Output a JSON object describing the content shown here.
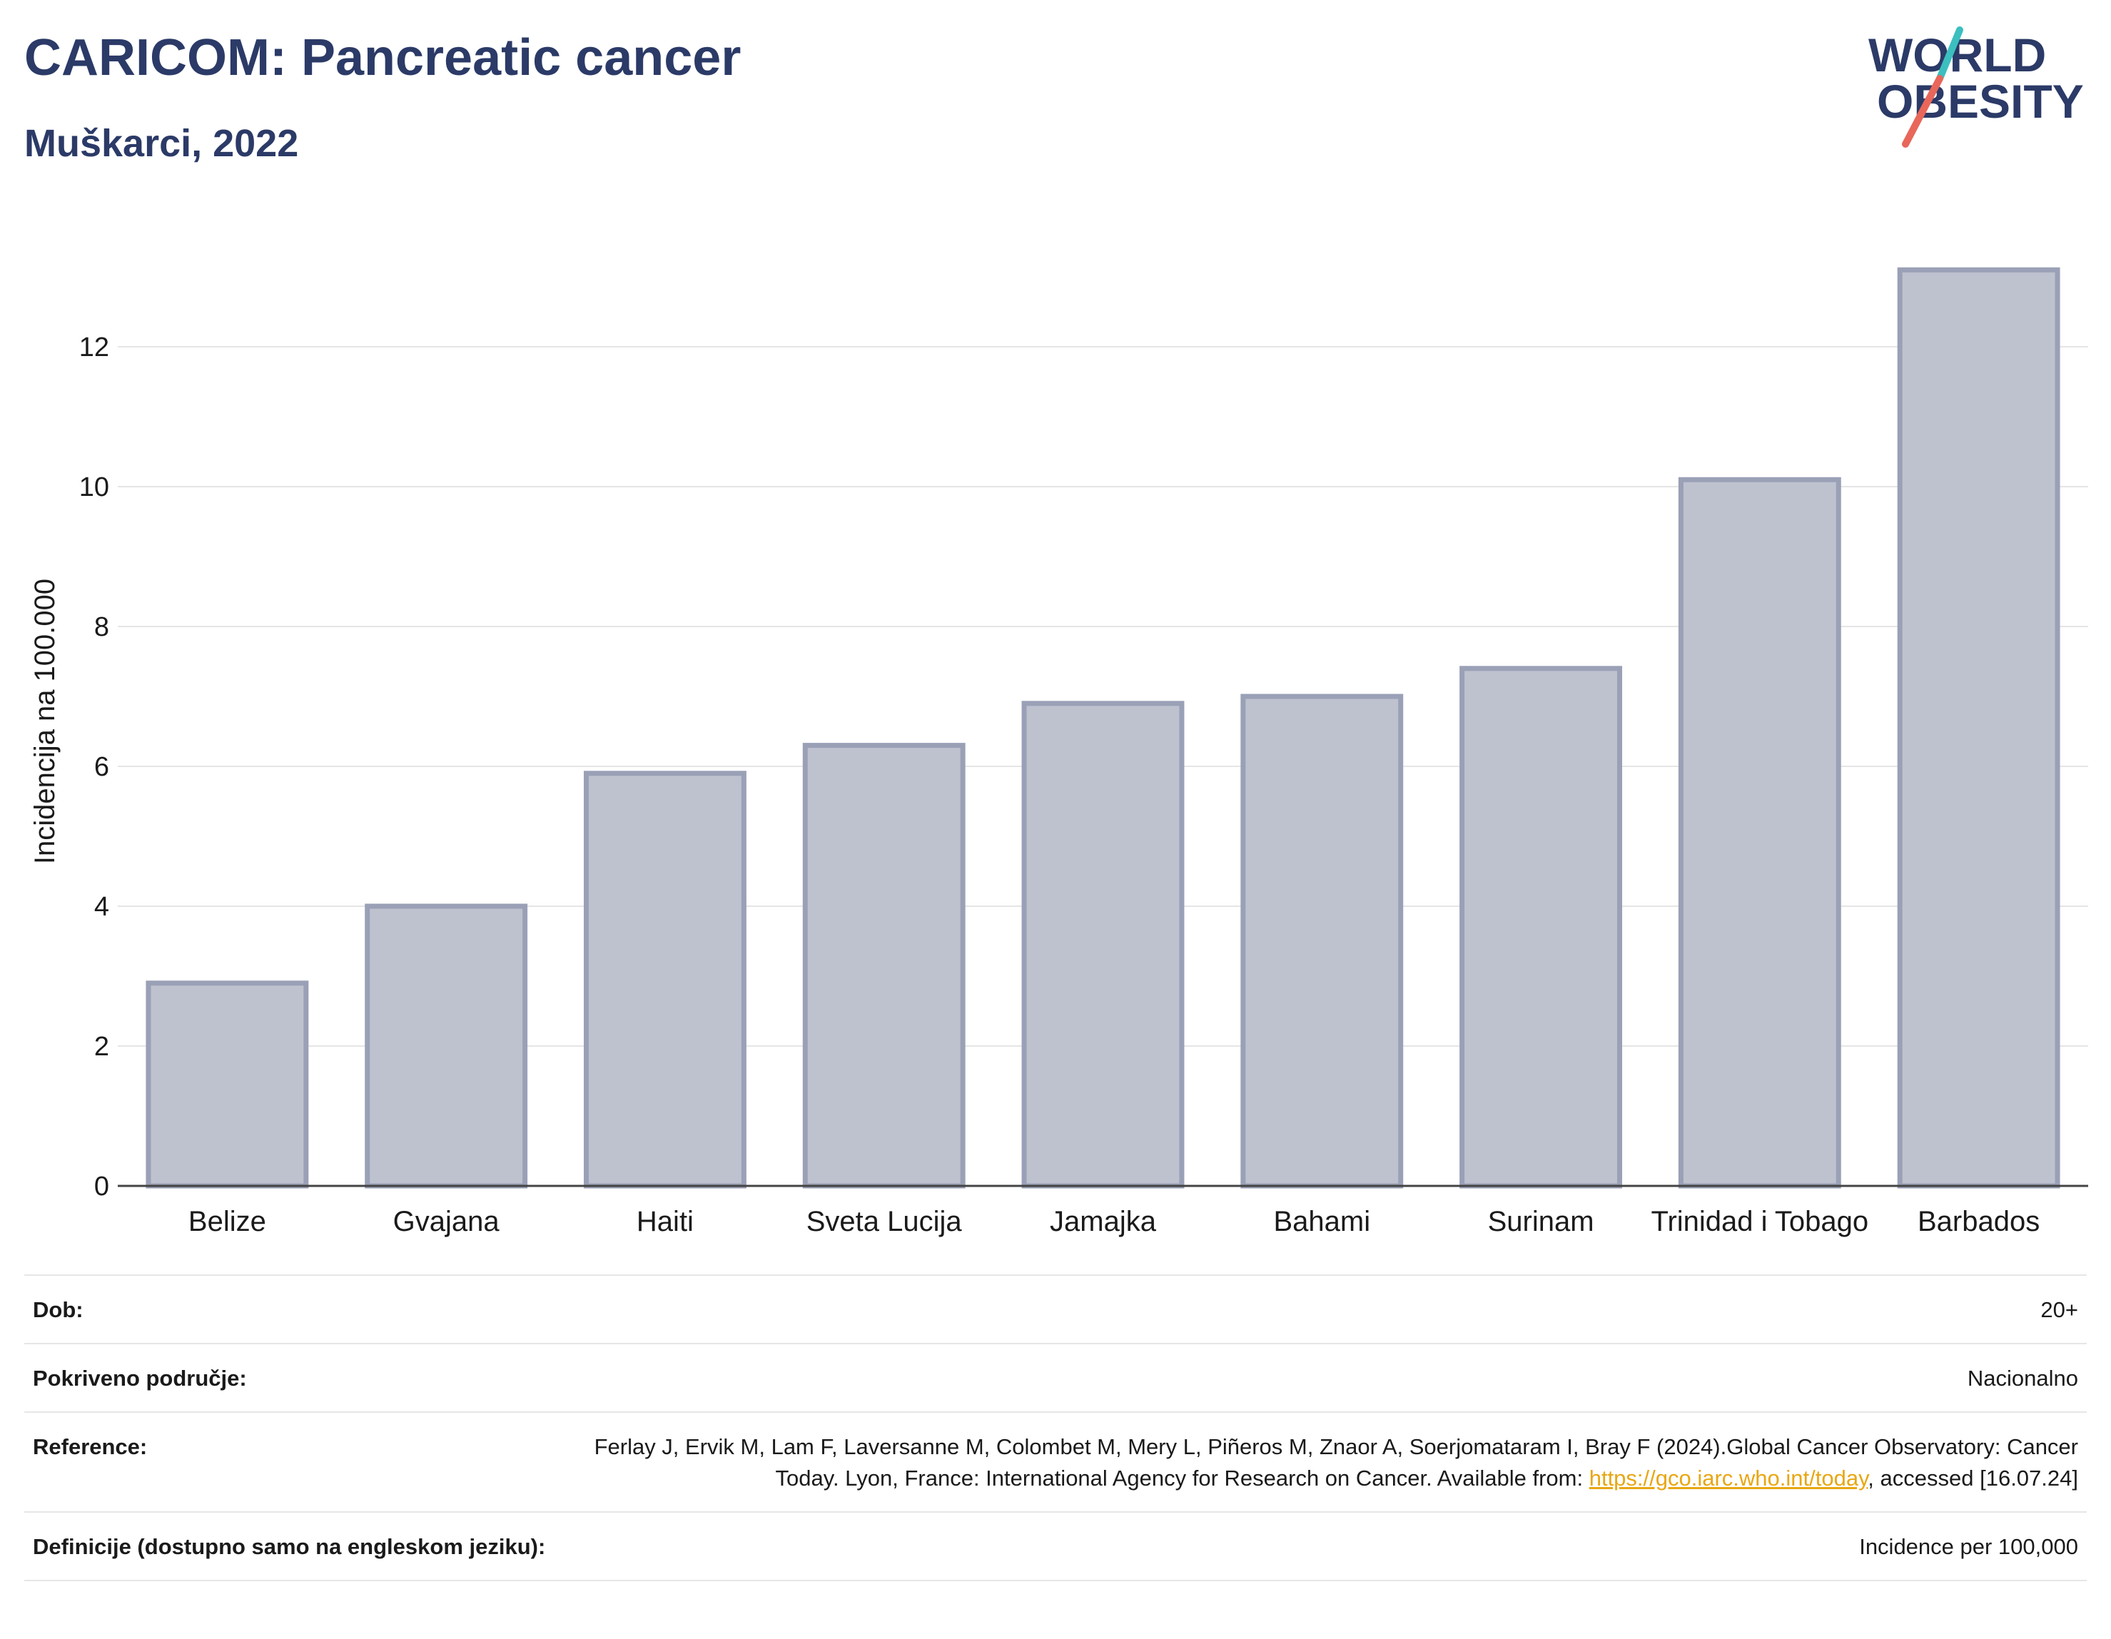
{
  "header": {
    "title": "CARICOM: Pancreatic cancer",
    "subtitle": "Muškarci, 2022"
  },
  "logo": {
    "line1": "WORLD",
    "line2": "OBESITY",
    "accent_teal": "#3cbfbf",
    "accent_coral": "#e8675a",
    "text_color": "#2b3a67"
  },
  "chart_data": {
    "type": "bar",
    "categories": [
      "Belize",
      "Gvajana",
      "Haiti",
      "Sveta Lucija",
      "Jamajka",
      "Bahami",
      "Surinam",
      "Trinidad i Tobago",
      "Barbados"
    ],
    "values": [
      2.9,
      4.0,
      5.9,
      6.3,
      6.9,
      7.0,
      7.4,
      10.1,
      13.1
    ],
    "ylabel": "Incidencija na 100.000",
    "xlabel": "",
    "ylim": [
      0,
      14
    ],
    "yticks": [
      0,
      2,
      4,
      6,
      8,
      10,
      12
    ],
    "grid": true,
    "bar_fill": "#bec2cf",
    "bar_stroke": "#9aa0b6"
  },
  "meta": {
    "age_label": "Dob:",
    "age_value": "20+",
    "coverage_label": "Pokriveno područje:",
    "coverage_value": "Nacionalno",
    "reference_label": "Reference:",
    "reference_text": "Ferlay J, Ervik M, Lam F, Laversanne M, Colombet M, Mery L, Piñeros M, Znaor A, Soerjomataram I, Bray F (2024).Global Cancer Observatory: Cancer Today. Lyon, France: International Agency for Research on Cancer. Available from: ",
    "reference_link": "https://gco.iarc.who.int/today",
    "reference_tail": ", accessed [16.07.24]",
    "definition_label": "Definicije (dostupno samo na engleskom jeziku):",
    "definition_value": "Incidence per 100,000"
  }
}
